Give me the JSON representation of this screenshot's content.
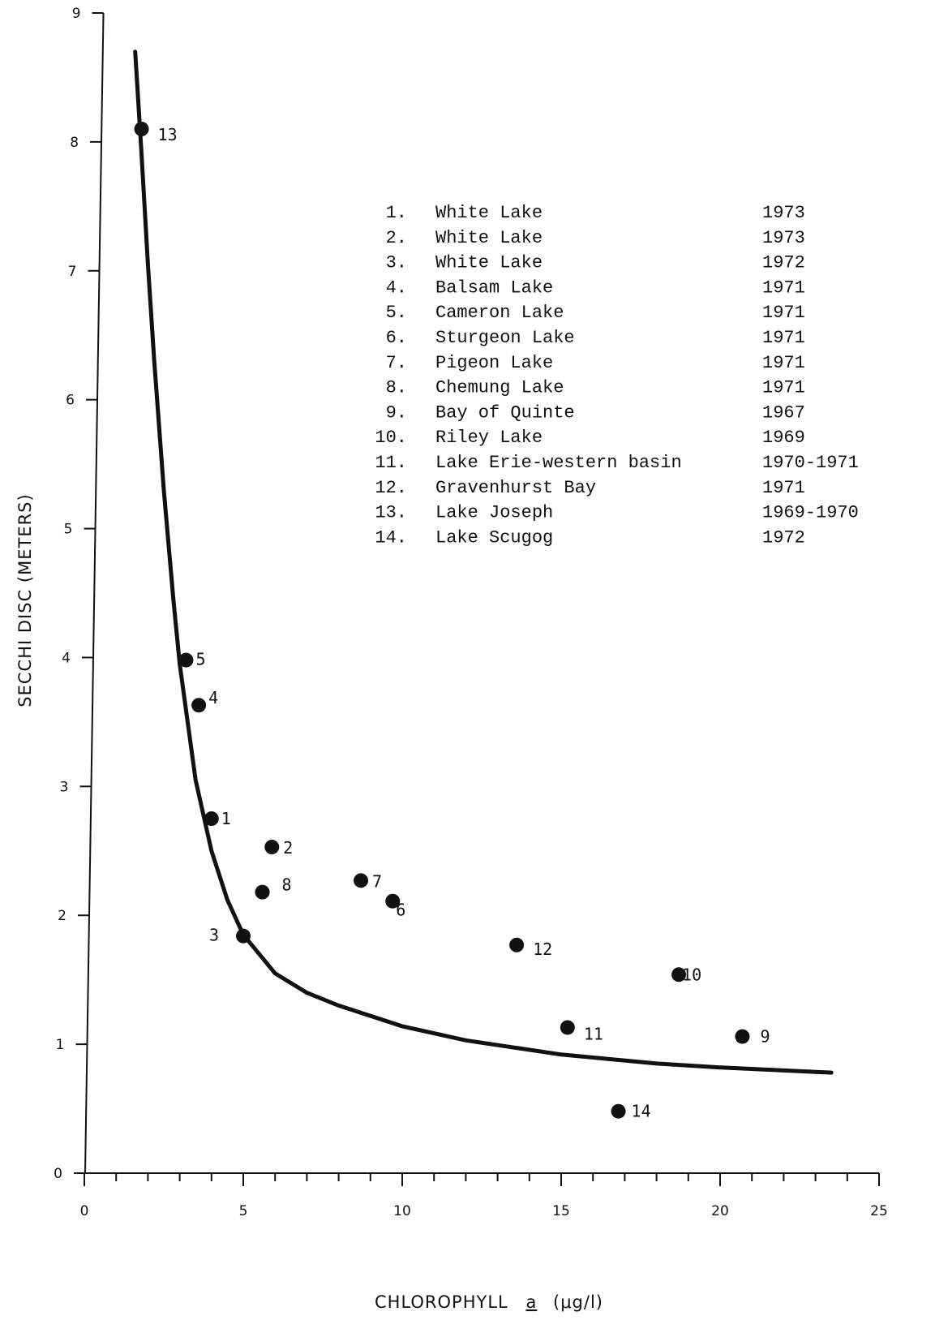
{
  "chart_data": {
    "type": "scatter",
    "title": "",
    "xlabel_parts": [
      "CHLOROPHYLL",
      "a",
      "(μg/l)"
    ],
    "ylabel": "SECCHI DISC (METERS)",
    "xlim": [
      0,
      25
    ],
    "ylim": [
      0,
      9
    ],
    "x_ticks": [
      0,
      5,
      10,
      15,
      20,
      25
    ],
    "x_tick_labels": [
      "0",
      "5",
      "10",
      "15",
      "20",
      "25"
    ],
    "y_ticks": [
      0,
      1,
      2,
      3,
      4,
      5,
      6,
      7,
      8,
      9
    ],
    "y_tick_labels": [
      "0",
      "1",
      "2",
      "3",
      "4",
      "5",
      "6",
      "7",
      "8",
      "9"
    ],
    "x_minor_step": 1,
    "grid": false,
    "legend_position": "top-right",
    "points": [
      {
        "label": "1",
        "x": 4.0,
        "y": 2.75
      },
      {
        "label": "2",
        "x": 5.9,
        "y": 2.53
      },
      {
        "label": "3",
        "x": 5.0,
        "y": 1.84
      },
      {
        "label": "4",
        "x": 3.6,
        "y": 3.63
      },
      {
        "label": "5",
        "x": 3.2,
        "y": 3.98
      },
      {
        "label": "6",
        "x": 9.7,
        "y": 2.11
      },
      {
        "label": "7",
        "x": 8.7,
        "y": 2.27
      },
      {
        "label": "8",
        "x": 5.6,
        "y": 2.18
      },
      {
        "label": "9",
        "x": 20.7,
        "y": 1.06
      },
      {
        "label": "10",
        "x": 18.7,
        "y": 1.54
      },
      {
        "label": "11",
        "x": 15.2,
        "y": 1.13
      },
      {
        "label": "12",
        "x": 13.6,
        "y": 1.77
      },
      {
        "label": "13",
        "x": 1.8,
        "y": 8.1
      },
      {
        "label": "14",
        "x": 16.8,
        "y": 0.48
      }
    ],
    "curve": {
      "name": "",
      "x": [
        1.6,
        1.8,
        2.0,
        2.2,
        2.5,
        2.8,
        3.0,
        3.5,
        4.0,
        4.5,
        5.0,
        6.0,
        7.0,
        8.0,
        10.0,
        12.0,
        15.0,
        18.0,
        20.0,
        23.5
      ],
      "y": [
        8.7,
        7.9,
        7.05,
        6.3,
        5.3,
        4.45,
        3.95,
        3.05,
        2.5,
        2.12,
        1.85,
        1.55,
        1.4,
        1.3,
        1.14,
        1.03,
        0.92,
        0.85,
        0.82,
        0.78
      ]
    },
    "legend": [
      {
        "num": "1.",
        "name": "White Lake",
        "year": "1973"
      },
      {
        "num": "2.",
        "name": "White Lake",
        "year": "1973"
      },
      {
        "num": "3.",
        "name": "White Lake",
        "year": "1972"
      },
      {
        "num": "4.",
        "name": "Balsam Lake",
        "year": "1971"
      },
      {
        "num": "5.",
        "name": "Cameron Lake",
        "year": "1971"
      },
      {
        "num": "6.",
        "name": "Sturgeon Lake",
        "year": "1971"
      },
      {
        "num": "7.",
        "name": "Pigeon Lake",
        "year": "1971"
      },
      {
        "num": "8.",
        "name": "Chemung Lake",
        "year": "1971"
      },
      {
        "num": "9.",
        "name": "Bay of Quinte",
        "year": "1967"
      },
      {
        "num": "10.",
        "name": "Riley Lake",
        "year": "1969"
      },
      {
        "num": "11.",
        "name": "Lake Erie-western basin",
        "year": "1970-1971"
      },
      {
        "num": "12.",
        "name": "Gravenhurst Bay",
        "year": "1971"
      },
      {
        "num": "13.",
        "name": "Lake Joseph",
        "year": "1969-1970"
      },
      {
        "num": "14.",
        "name": "Lake Scugog",
        "year": "1972"
      }
    ],
    "colors": {
      "ink": "#111111",
      "background": "#ffffff"
    }
  }
}
